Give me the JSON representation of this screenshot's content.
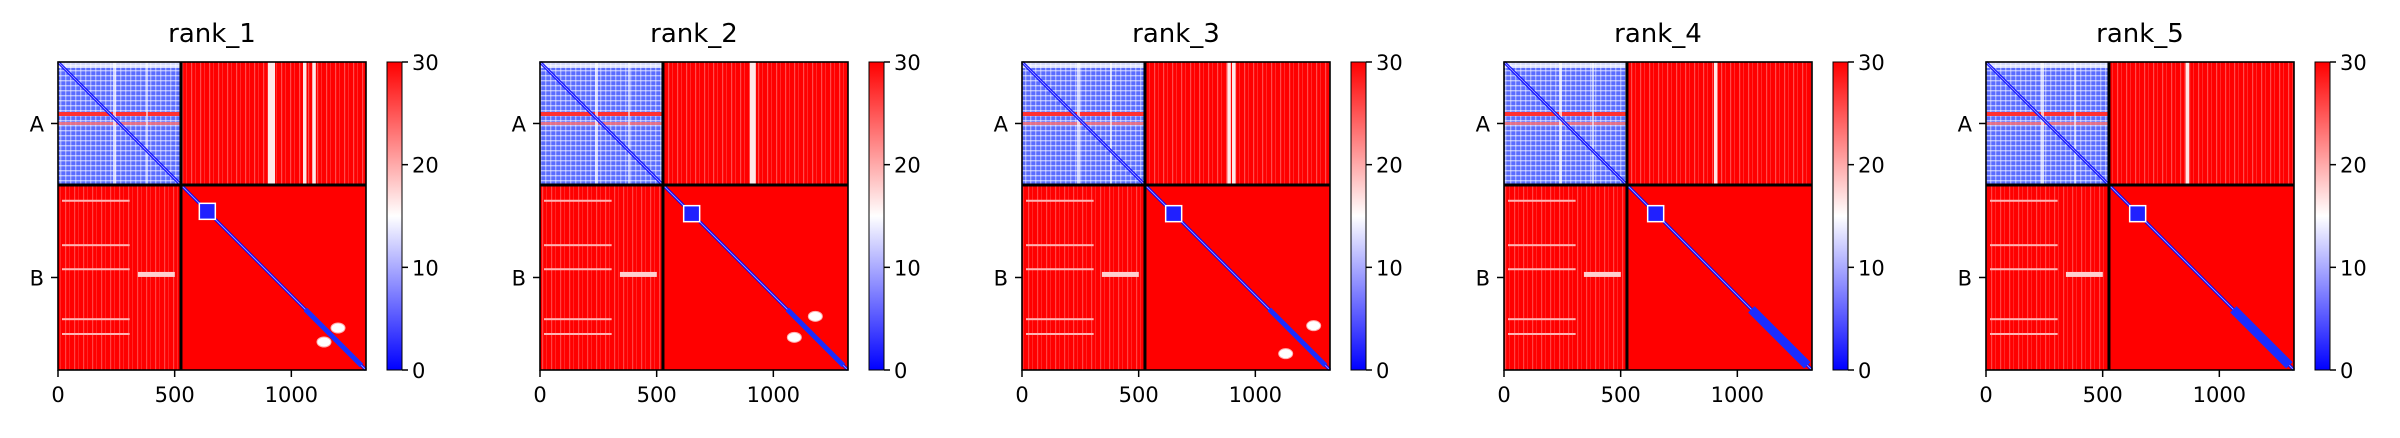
{
  "chart_data": [
    {
      "type": "heatmap",
      "title": "rank_1",
      "chains": [
        "A",
        "B"
      ],
      "chain_boundary": 527,
      "xlim": [
        0,
        1320
      ],
      "xticks": [
        0,
        500,
        1000
      ],
      "colorbar": {
        "min": 0,
        "max": 30,
        "ticks": [
          0,
          10,
          20,
          30
        ],
        "colormap": "bwr",
        "low_color": "#0000ff",
        "mid_color": "#ffffff",
        "high_color": "#ff0000"
      },
      "intra_a_blue_fraction": 0.7,
      "diagonal_blob_positions": [
        640
      ],
      "offdiag_low_error_spots": [
        {
          "x": 1140,
          "y": 1200
        },
        {
          "x": 1200,
          "y": 1140
        }
      ],
      "white_streaks_x": [
        900,
        915,
        1050,
        1090
      ]
    },
    {
      "type": "heatmap",
      "title": "rank_2",
      "chains": [
        "A",
        "B"
      ],
      "chain_boundary": 527,
      "xlim": [
        0,
        1320
      ],
      "xticks": [
        0,
        500,
        1000
      ],
      "colorbar": {
        "min": 0,
        "max": 30,
        "ticks": [
          0,
          10,
          20,
          30
        ],
        "colormap": "bwr",
        "low_color": "#0000ff",
        "mid_color": "#ffffff",
        "high_color": "#ff0000"
      },
      "intra_a_blue_fraction": 0.7,
      "diagonal_blob_positions": [
        650
      ],
      "offdiag_low_error_spots": [
        {
          "x": 1090,
          "y": 1180
        },
        {
          "x": 1180,
          "y": 1090
        }
      ],
      "white_streaks_x": [
        900,
        910
      ]
    },
    {
      "type": "heatmap",
      "title": "rank_3",
      "chains": [
        "A",
        "B"
      ],
      "chain_boundary": 527,
      "xlim": [
        0,
        1320
      ],
      "xticks": [
        0,
        500,
        1000
      ],
      "colorbar": {
        "min": 0,
        "max": 30,
        "ticks": [
          0,
          10,
          20,
          30
        ],
        "colormap": "bwr",
        "low_color": "#0000ff",
        "mid_color": "#ffffff",
        "high_color": "#ff0000"
      },
      "intra_a_blue_fraction": 0.7,
      "diagonal_blob_positions": [
        650
      ],
      "offdiag_low_error_spots": [
        {
          "x": 1130,
          "y": 1250
        },
        {
          "x": 1250,
          "y": 1130
        }
      ],
      "white_streaks_x": [
        880,
        900
      ]
    },
    {
      "type": "heatmap",
      "title": "rank_4",
      "chains": [
        "A",
        "B"
      ],
      "chain_boundary": 527,
      "xlim": [
        0,
        1320
      ],
      "xticks": [
        0,
        500,
        1000
      ],
      "colorbar": {
        "min": 0,
        "max": 30,
        "ticks": [
          0,
          10,
          20,
          30
        ],
        "colormap": "bwr",
        "low_color": "#0000ff",
        "mid_color": "#ffffff",
        "high_color": "#ff0000"
      },
      "intra_a_blue_fraction": 0.72,
      "diagonal_blob_positions": [
        650
      ],
      "offdiag_low_error_spots": [],
      "white_streaks_x": [
        900
      ]
    },
    {
      "type": "heatmap",
      "title": "rank_5",
      "chains": [
        "A",
        "B"
      ],
      "chain_boundary": 527,
      "xlim": [
        0,
        1320
      ],
      "xticks": [
        0,
        500,
        1000
      ],
      "colorbar": {
        "min": 0,
        "max": 30,
        "ticks": [
          0,
          10,
          20,
          30
        ],
        "colormap": "bwr",
        "low_color": "#0000ff",
        "mid_color": "#ffffff",
        "high_color": "#ff0000"
      },
      "intra_a_blue_fraction": 0.75,
      "diagonal_blob_positions": [
        650
      ],
      "offdiag_low_error_spots": [],
      "white_streaks_x": [
        855
      ]
    }
  ]
}
